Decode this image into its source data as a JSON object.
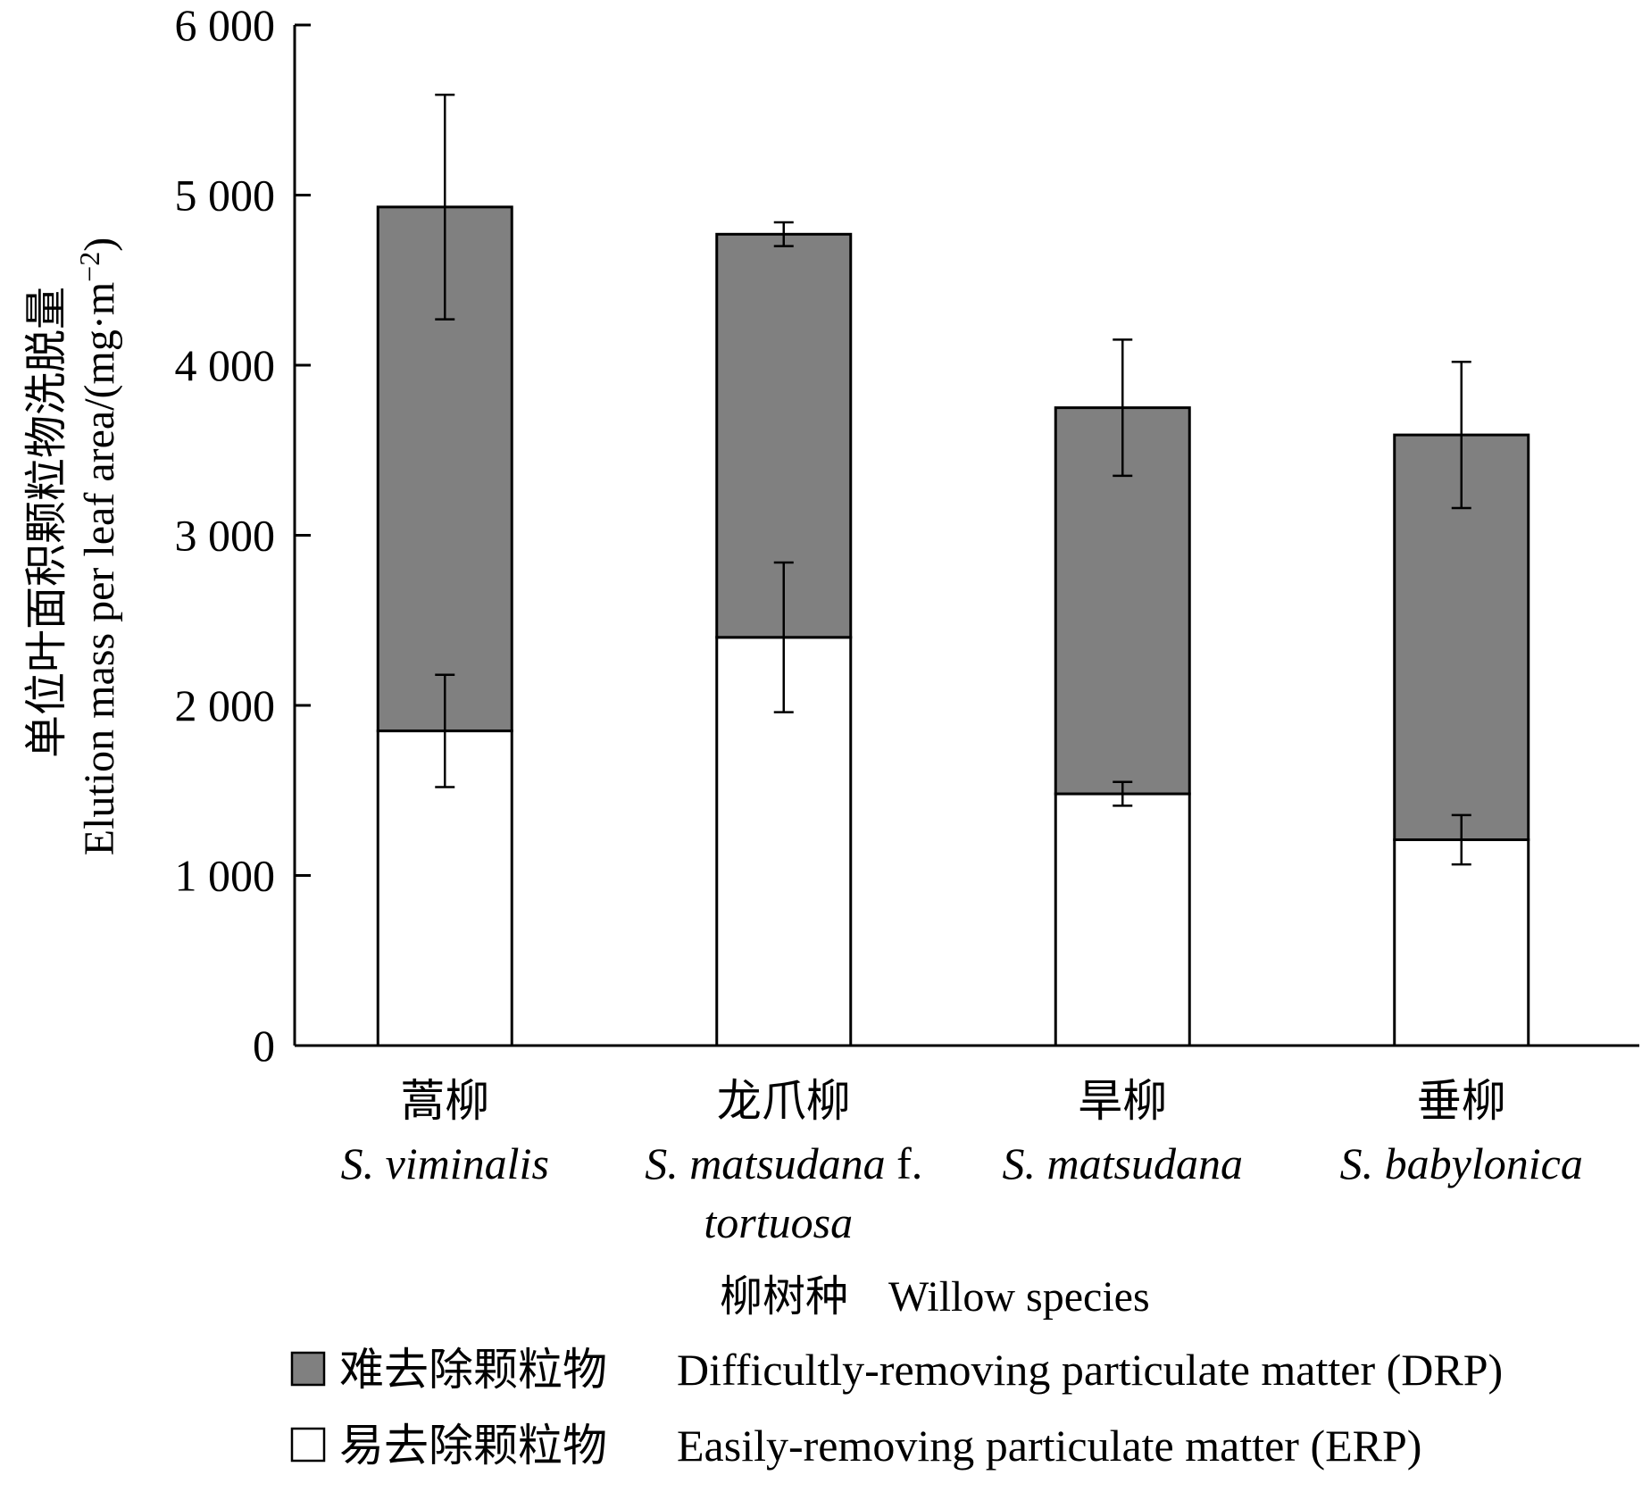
{
  "chart_data": {
    "type": "bar",
    "stacked": true,
    "ylabel_cn": "单位叶面积颗粒物洗脱量",
    "ylabel_en": "Elution mass per leaf area/(mg·m",
    "ylabel_unit_exp": "−2",
    "ylabel_end": ")",
    "xlabel_cn": "柳树种",
    "xlabel_en": "Willow species",
    "ylim": [
      0,
      6000
    ],
    "yticks": [
      0,
      1000,
      2000,
      3000,
      4000,
      5000,
      6000
    ],
    "ytick_labels": [
      "0",
      "1 000",
      "2 000",
      "3 000",
      "4 000",
      "5 000",
      "6 000"
    ],
    "categories": [
      {
        "cn": "蒿柳",
        "en_italic": "S. viminalis",
        "en_suffix": "",
        "en_line2": ""
      },
      {
        "cn": "龙爪柳",
        "en_italic": "S. matsudana",
        "en_suffix": " f.",
        "en_line2": "tortuosa"
      },
      {
        "cn": "旱柳",
        "en_italic": "S. matsudana",
        "en_suffix": "",
        "en_line2": ""
      },
      {
        "cn": "垂柳",
        "en_italic": "S. babylonica",
        "en_suffix": "",
        "en_line2": ""
      }
    ],
    "series": [
      {
        "name": "Easily-removing particulate matter (ERP)",
        "name_cn": "易去除颗粒物",
        "color": "#ffffff",
        "values": [
          1850,
          2400,
          1480,
          1210
        ],
        "error": [
          330,
          440,
          70,
          145
        ]
      },
      {
        "name": "Difficultly-removing particulate matter (DRP)",
        "name_cn": "难去除颗粒物",
        "color": "#808080",
        "values": [
          3080,
          2370,
          2270,
          2380
        ],
        "error": [
          660,
          70,
          400,
          430
        ]
      }
    ],
    "legend_position": "bottom",
    "grid": false
  }
}
